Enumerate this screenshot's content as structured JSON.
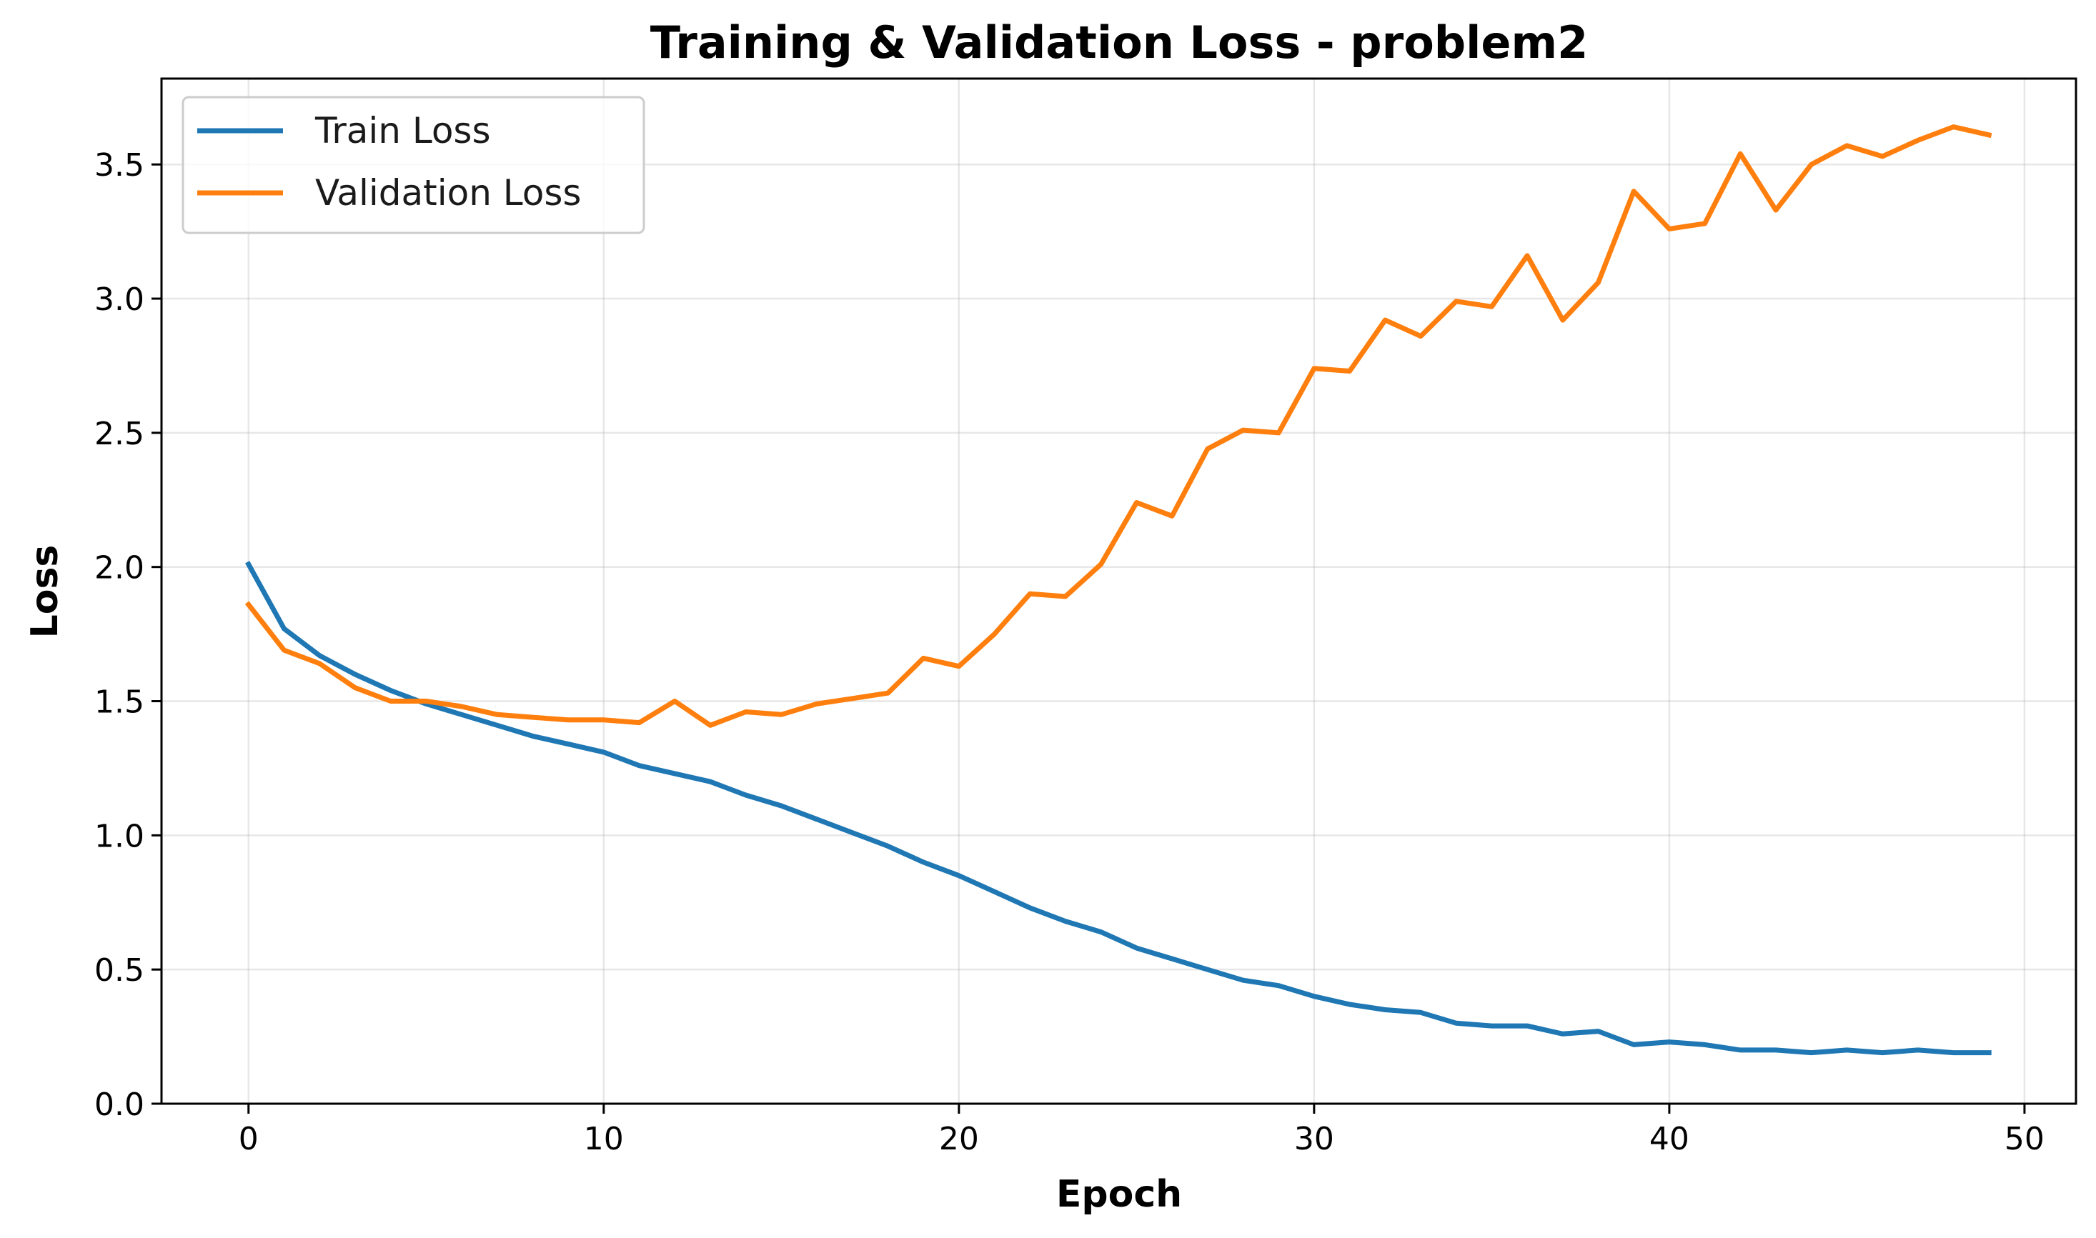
{
  "chart_data": {
    "type": "line",
    "title": "Training & Validation Loss - problem2",
    "xlabel": "Epoch",
    "ylabel": "Loss",
    "xlim": [
      -2.45,
      51.45
    ],
    "ylim": [
      0,
      3.82
    ],
    "xticks": [
      0,
      10,
      20,
      30,
      40,
      50
    ],
    "yticks": [
      0.0,
      0.5,
      1.0,
      1.5,
      2.0,
      2.5,
      3.0,
      3.5
    ],
    "xtick_labels": [
      "0",
      "10",
      "20",
      "30",
      "40",
      "50"
    ],
    "ytick_labels": [
      "0.0",
      "0.5",
      "1.0",
      "1.5",
      "2.0",
      "2.5",
      "3.0",
      "3.5"
    ],
    "grid": true,
    "legend_position": "top-left",
    "x": [
      0,
      1,
      2,
      3,
      4,
      5,
      6,
      7,
      8,
      9,
      10,
      11,
      12,
      13,
      14,
      15,
      16,
      17,
      18,
      19,
      20,
      21,
      22,
      23,
      24,
      25,
      26,
      27,
      28,
      29,
      30,
      31,
      32,
      33,
      34,
      35,
      36,
      37,
      38,
      39,
      40,
      41,
      42,
      43,
      44,
      45,
      46,
      47,
      48,
      49
    ],
    "series": [
      {
        "name": "Train Loss",
        "color": "#1f77b4",
        "values": [
          2.01,
          1.77,
          1.67,
          1.6,
          1.54,
          1.49,
          1.45,
          1.41,
          1.37,
          1.34,
          1.31,
          1.26,
          1.23,
          1.2,
          1.15,
          1.11,
          1.06,
          1.01,
          0.96,
          0.9,
          0.85,
          0.79,
          0.73,
          0.68,
          0.64,
          0.58,
          0.54,
          0.5,
          0.46,
          0.44,
          0.4,
          0.37,
          0.35,
          0.34,
          0.3,
          0.29,
          0.29,
          0.26,
          0.27,
          0.22,
          0.23,
          0.22,
          0.2,
          0.2,
          0.19,
          0.2,
          0.19,
          0.2,
          0.19,
          0.19
        ]
      },
      {
        "name": "Validation Loss",
        "color": "#ff7f0e",
        "values": [
          1.86,
          1.69,
          1.64,
          1.55,
          1.5,
          1.5,
          1.48,
          1.45,
          1.44,
          1.43,
          1.43,
          1.42,
          1.5,
          1.41,
          1.46,
          1.45,
          1.49,
          1.51,
          1.53,
          1.66,
          1.63,
          1.75,
          1.9,
          1.89,
          2.01,
          2.24,
          2.19,
          2.44,
          2.51,
          2.5,
          2.74,
          2.73,
          2.92,
          2.86,
          2.99,
          2.97,
          3.16,
          2.92,
          3.06,
          3.4,
          3.26,
          3.28,
          3.54,
          3.33,
          3.5,
          3.57,
          3.53,
          3.59,
          3.64,
          3.61
        ]
      }
    ]
  }
}
